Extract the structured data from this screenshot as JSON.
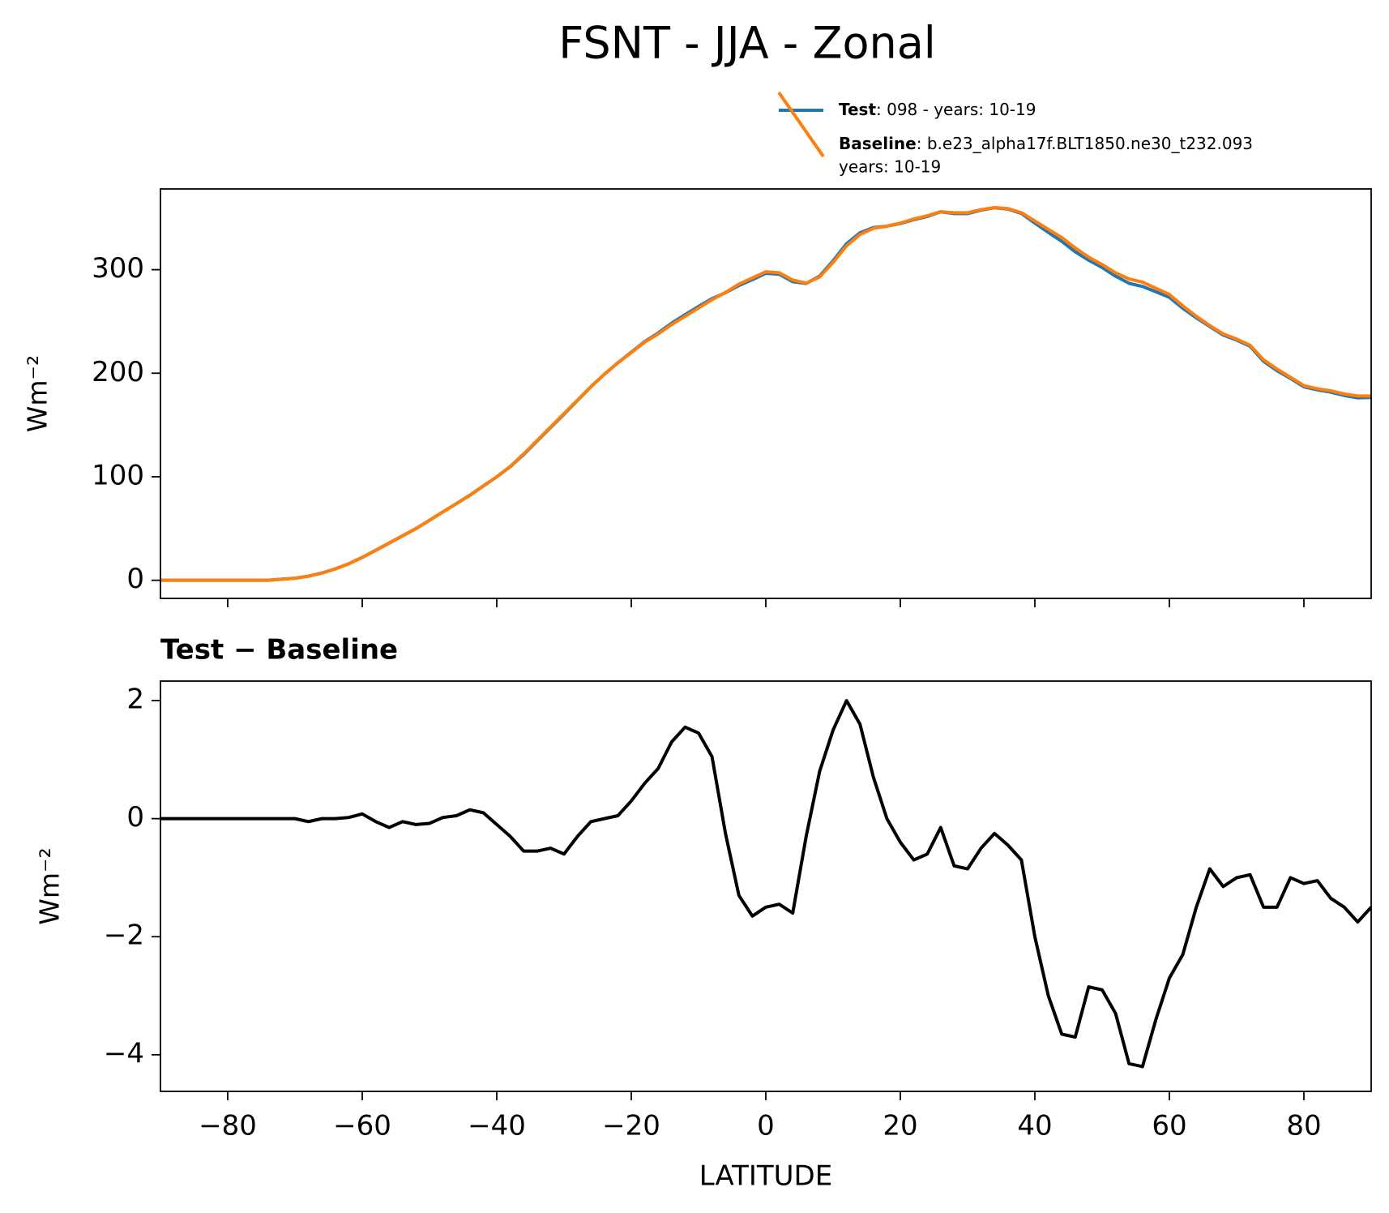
{
  "title": "FSNT - JJA - Zonal",
  "chart_data": [
    {
      "type": "line",
      "ylabel": "Wm⁻²",
      "x": [
        -90,
        -88,
        -86,
        -84,
        -82,
        -80,
        -78,
        -76,
        -74,
        -72,
        -70,
        -68,
        -66,
        -64,
        -62,
        -60,
        -58,
        -56,
        -54,
        -52,
        -50,
        -48,
        -46,
        -44,
        -42,
        -40,
        -38,
        -36,
        -34,
        -32,
        -30,
        -28,
        -26,
        -24,
        -22,
        -20,
        -18,
        -16,
        -14,
        -12,
        -10,
        -8,
        -6,
        -4,
        -2,
        0,
        2,
        4,
        6,
        8,
        10,
        12,
        14,
        16,
        18,
        20,
        22,
        24,
        26,
        28,
        30,
        32,
        34,
        36,
        38,
        40,
        42,
        44,
        46,
        48,
        50,
        52,
        54,
        56,
        58,
        60,
        62,
        64,
        66,
        68,
        70,
        72,
        74,
        76,
        78,
        80,
        82,
        84,
        86,
        88,
        90
      ],
      "series": [
        {
          "name": "Test",
          "description": [
            ": 098 - years: 10-19"
          ],
          "color": "#1f77b4",
          "values": [
            0,
            0,
            0,
            0,
            0,
            0,
            0,
            0,
            0,
            1,
            2,
            3.95,
            7,
            11,
            16.02,
            22.08,
            28.95,
            35.85,
            42.95,
            49.9,
            57.92,
            66.02,
            74.05,
            82.15,
            91.1,
            99.9,
            109.7,
            121.45,
            134.45,
            147.5,
            160.4,
            173.7,
            186.95,
            199,
            210.05,
            220.3,
            230.6,
            238.85,
            248.3,
            256.55,
            264.45,
            272.05,
            277.75,
            284.7,
            290.35,
            296.5,
            295.55,
            288.4,
            286.7,
            293.8,
            308.5,
            325,
            335.6,
            340.7,
            342,
            344.6,
            348.3,
            351.4,
            355.85,
            354.2,
            354.15,
            357.5,
            359.75,
            358.55,
            354.3,
            345,
            336,
            327.35,
            317.3,
            309.15,
            302.1,
            293.7,
            286.85,
            283.8,
            278.6,
            273.3,
            262.7,
            253.5,
            245.15,
            236.85,
            232,
            226.05,
            211.5,
            202.5,
            195,
            186.9,
            183.95,
            181.65,
            178.5,
            176.25,
            176.5
          ]
        },
        {
          "name": "Baseline",
          "description": [
            ": b.e23_alpha17f.BLT1850.ne30_t232.093",
            "years: 10-19"
          ],
          "color": "#ff7f0e",
          "values": [
            0,
            0,
            0,
            0,
            0,
            0,
            0,
            0,
            0,
            1,
            2,
            4,
            7,
            11,
            16,
            22,
            29,
            36,
            43,
            50,
            58,
            66,
            74,
            82,
            91,
            100,
            110,
            122,
            135,
            148,
            161,
            174,
            187,
            199,
            210,
            220,
            230,
            238,
            247,
            255,
            263,
            271,
            278,
            286,
            292,
            298,
            297,
            290,
            287,
            293,
            307,
            323,
            334,
            340,
            342,
            345,
            349,
            352,
            356,
            355,
            355,
            358,
            360,
            359,
            355,
            347,
            339,
            331,
            321,
            312,
            305,
            297,
            291,
            288,
            282,
            276,
            265,
            255,
            246,
            238,
            233,
            227,
            213,
            204,
            196,
            188,
            185,
            183,
            180,
            178,
            178
          ]
        }
      ],
      "xlim": [
        -90,
        90
      ],
      "ylim": [
        -17.5,
        378
      ],
      "xticks": [
        -80,
        -60,
        -40,
        -20,
        0,
        20,
        40,
        60,
        80
      ],
      "yticks": [
        0,
        100,
        200,
        300
      ],
      "legend": "upper right"
    },
    {
      "type": "line",
      "title": "Test − Baseline",
      "xlabel": "LATITUDE",
      "ylabel": "Wm⁻²",
      "x": [
        -90,
        -88,
        -86,
        -84,
        -82,
        -80,
        -78,
        -76,
        -74,
        -72,
        -70,
        -68,
        -66,
        -64,
        -62,
        -60,
        -58,
        -56,
        -54,
        -52,
        -50,
        -48,
        -46,
        -44,
        -42,
        -40,
        -38,
        -36,
        -34,
        -32,
        -30,
        -28,
        -26,
        -24,
        -22,
        -20,
        -18,
        -16,
        -14,
        -12,
        -10,
        -8,
        -6,
        -4,
        -2,
        0,
        2,
        4,
        6,
        8,
        10,
        12,
        14,
        16,
        18,
        20,
        22,
        24,
        26,
        28,
        30,
        32,
        34,
        36,
        38,
        40,
        42,
        44,
        46,
        48,
        50,
        52,
        54,
        56,
        58,
        60,
        62,
        64,
        66,
        68,
        70,
        72,
        74,
        76,
        78,
        80,
        82,
        84,
        86,
        88,
        90
      ],
      "values": [
        0,
        0,
        0,
        0,
        0,
        0,
        0,
        0,
        0,
        0,
        0,
        -0.05,
        0,
        0,
        0.02,
        0.08,
        -0.05,
        -0.15,
        -0.05,
        -0.1,
        -0.08,
        0.02,
        0.05,
        0.15,
        0.1,
        -0.1,
        -0.3,
        -0.55,
        -0.55,
        -0.5,
        -0.6,
        -0.3,
        -0.05,
        0,
        0.05,
        0.3,
        0.6,
        0.85,
        1.3,
        1.55,
        1.45,
        1.05,
        -0.25,
        -1.3,
        -1.65,
        -1.5,
        -1.45,
        -1.6,
        -0.3,
        0.8,
        1.5,
        2.0,
        1.6,
        0.7,
        0,
        -0.4,
        -0.7,
        -0.6,
        -0.15,
        -0.8,
        -0.85,
        -0.5,
        -0.25,
        -0.45,
        -0.7,
        -2.0,
        -3.0,
        -3.65,
        -3.7,
        -2.85,
        -2.9,
        -3.3,
        -4.15,
        -4.2,
        -3.4,
        -2.7,
        -2.3,
        -1.5,
        -0.85,
        -1.15,
        -1.0,
        -0.95,
        -1.5,
        -1.5,
        -1.0,
        -1.1,
        -1.05,
        -1.35,
        -1.5,
        -1.75,
        -1.5
      ],
      "color": "#000000",
      "xlim": [
        -90,
        90
      ],
      "ylim": [
        -4.62,
        2.33
      ],
      "xticks": [
        {
          "value": -80,
          "label": "−80"
        },
        {
          "value": -60,
          "label": "−60"
        },
        {
          "value": -40,
          "label": "−40"
        },
        {
          "value": -20,
          "label": "−20"
        },
        0,
        20,
        40,
        60,
        80
      ],
      "yticks": [
        {
          "value": -4,
          "label": "−4"
        },
        {
          "value": -2,
          "label": "−2"
        },
        0,
        2
      ]
    }
  ]
}
